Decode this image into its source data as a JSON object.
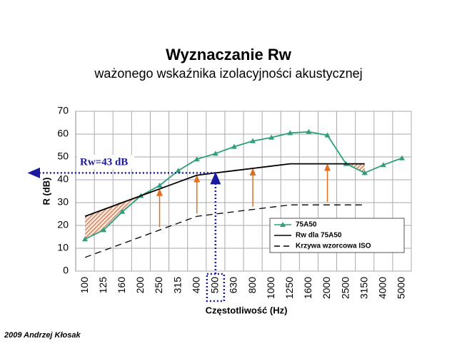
{
  "chart_data": {
    "type": "line",
    "title": "Wyznaczanie Rw",
    "subtitle": "ważonego wskaźnika izolacyjności akustycznej",
    "x_label": "Częstotliwość (Hz)",
    "y_label": "R (dB)",
    "annotation": "Rw=43 dB",
    "footer": "2009 Andrzej Kłosak",
    "categories": [
      "100",
      "125",
      "160",
      "200",
      "250",
      "315",
      "400",
      "500",
      "630",
      "800",
      "1000",
      "1250",
      "1600",
      "2000",
      "2500",
      "3150",
      "4000",
      "5000"
    ],
    "series": [
      {
        "name": "75A50",
        "color": "#2e9e7e",
        "values": [
          14,
          18,
          26,
          33,
          37.5,
          44,
          49,
          51.5,
          54.5,
          57,
          58.5,
          60.5,
          61,
          59.5,
          47,
          43,
          46.5,
          49.5
        ]
      },
      {
        "name": "Rw dla 75A50",
        "color": "#000000",
        "values": [
          24,
          27,
          30,
          33,
          36,
          39,
          42,
          43,
          44,
          45,
          46,
          47,
          47,
          47,
          47,
          47,
          null,
          null
        ]
      },
      {
        "name": "Krzywa wzorcowa ISO",
        "color": "#000000",
        "dashed": true,
        "values": [
          6,
          9,
          12,
          15,
          18,
          21,
          24,
          25,
          26,
          27,
          28,
          29,
          29,
          29,
          29,
          29,
          null,
          null
        ]
      }
    ],
    "ylim": [
      0,
      70
    ],
    "yticks": [
      0,
      10,
      20,
      30,
      40,
      50,
      60,
      70
    ],
    "grid": true
  }
}
